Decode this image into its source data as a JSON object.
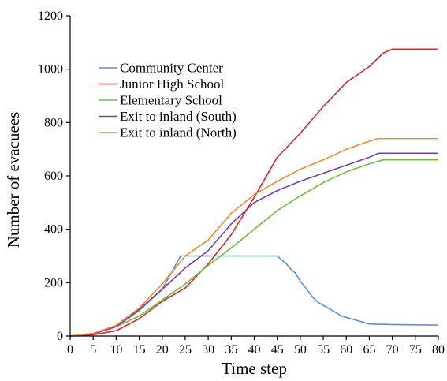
{
  "chart_data": {
    "type": "line",
    "title": "",
    "xlabel": "Time step",
    "ylabel": "Number of evacuees",
    "xlim": [
      0,
      80
    ],
    "ylim": [
      0,
      1200
    ],
    "x_ticks": [
      0,
      5,
      10,
      15,
      20,
      25,
      30,
      35,
      40,
      45,
      50,
      55,
      60,
      65,
      70,
      75,
      80
    ],
    "y_ticks": [
      0,
      200,
      400,
      600,
      800,
      1000,
      1200
    ],
    "grid": false,
    "legend_position": "upper-left",
    "series": [
      {
        "name": "Community Center",
        "color": "#5b8fd6",
        "points": [
          [
            0,
            0
          ],
          [
            5,
            8
          ],
          [
            10,
            35
          ],
          [
            15,
            95
          ],
          [
            20,
            175
          ],
          [
            24,
            300
          ],
          [
            25,
            300
          ],
          [
            30,
            300
          ],
          [
            35,
            300
          ],
          [
            40,
            300
          ],
          [
            45,
            300
          ],
          [
            46,
            285
          ],
          [
            47,
            270
          ],
          [
            48,
            250
          ],
          [
            49,
            235
          ],
          [
            50,
            205
          ],
          [
            51,
            185
          ],
          [
            52,
            160
          ],
          [
            53,
            140
          ],
          [
            54,
            125
          ],
          [
            55,
            115
          ],
          [
            56,
            105
          ],
          [
            57,
            95
          ],
          [
            58,
            85
          ],
          [
            59,
            75
          ],
          [
            60,
            70
          ],
          [
            61,
            65
          ],
          [
            62,
            60
          ],
          [
            63,
            55
          ],
          [
            64,
            50
          ],
          [
            65,
            45
          ],
          [
            70,
            43
          ],
          [
            75,
            42
          ],
          [
            80,
            41
          ]
        ]
      },
      {
        "name": "Junior High School",
        "color": "#e0242e",
        "points": [
          [
            0,
            0
          ],
          [
            5,
            5
          ],
          [
            10,
            20
          ],
          [
            15,
            65
          ],
          [
            20,
            130
          ],
          [
            25,
            180
          ],
          [
            30,
            270
          ],
          [
            35,
            380
          ],
          [
            40,
            520
          ],
          [
            45,
            670
          ],
          [
            50,
            760
          ],
          [
            55,
            860
          ],
          [
            60,
            950
          ],
          [
            65,
            1010
          ],
          [
            68,
            1060
          ],
          [
            70,
            1075
          ],
          [
            75,
            1075
          ],
          [
            80,
            1075
          ]
        ]
      },
      {
        "name": "Elementary School",
        "color": "#6cbf3a",
        "points": [
          [
            0,
            0
          ],
          [
            5,
            10
          ],
          [
            10,
            35
          ],
          [
            15,
            75
          ],
          [
            20,
            135
          ],
          [
            25,
            195
          ],
          [
            30,
            265
          ],
          [
            35,
            330
          ],
          [
            40,
            400
          ],
          [
            45,
            470
          ],
          [
            50,
            525
          ],
          [
            55,
            575
          ],
          [
            60,
            615
          ],
          [
            65,
            645
          ],
          [
            68,
            660
          ],
          [
            70,
            660
          ],
          [
            75,
            660
          ],
          [
            80,
            660
          ]
        ]
      },
      {
        "name": "Exit to inland (South)",
        "color": "#7a3fa0",
        "points": [
          [
            0,
            0
          ],
          [
            5,
            8
          ],
          [
            10,
            35
          ],
          [
            15,
            100
          ],
          [
            20,
            175
          ],
          [
            25,
            255
          ],
          [
            30,
            320
          ],
          [
            35,
            420
          ],
          [
            40,
            500
          ],
          [
            45,
            545
          ],
          [
            50,
            580
          ],
          [
            55,
            610
          ],
          [
            60,
            640
          ],
          [
            65,
            670
          ],
          [
            67,
            685
          ],
          [
            70,
            685
          ],
          [
            75,
            685
          ],
          [
            80,
            685
          ]
        ]
      },
      {
        "name": "Exit to inland (North)",
        "color": "#f08a2e",
        "points": [
          [
            0,
            0
          ],
          [
            5,
            10
          ],
          [
            10,
            40
          ],
          [
            15,
            105
          ],
          [
            20,
            195
          ],
          [
            25,
            300
          ],
          [
            30,
            360
          ],
          [
            35,
            460
          ],
          [
            40,
            530
          ],
          [
            45,
            580
          ],
          [
            50,
            625
          ],
          [
            55,
            660
          ],
          [
            60,
            700
          ],
          [
            65,
            730
          ],
          [
            67,
            740
          ],
          [
            70,
            740
          ],
          [
            75,
            740
          ],
          [
            80,
            740
          ]
        ]
      }
    ]
  }
}
